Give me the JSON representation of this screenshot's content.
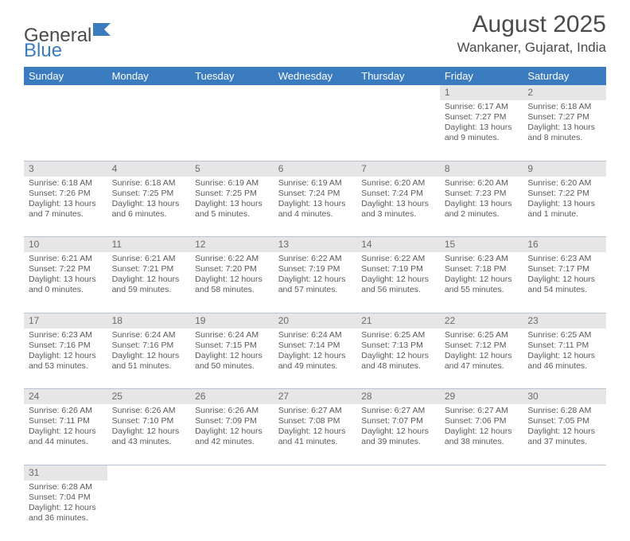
{
  "logo": {
    "part1": "General",
    "part2": "Blue"
  },
  "title": "August 2025",
  "location": "Wankaner, Gujarat, India",
  "colors": {
    "header_bg": "#3b7bbf",
    "header_text": "#ffffff",
    "daynum_bg": "#e6e6e6",
    "cell_border": "#b8c4d0",
    "body_text": "#5a5a5a",
    "title_text": "#4a4a4a"
  },
  "typography": {
    "title_fontsize": 30,
    "location_fontsize": 17,
    "header_fontsize": 13,
    "cell_fontsize": 10.5
  },
  "weekdays": [
    "Sunday",
    "Monday",
    "Tuesday",
    "Wednesday",
    "Thursday",
    "Friday",
    "Saturday"
  ],
  "weeks": [
    [
      null,
      null,
      null,
      null,
      null,
      {
        "n": "1",
        "sr": "Sunrise: 6:17 AM",
        "ss": "Sunset: 7:27 PM",
        "dl": "Daylight: 13 hours and 9 minutes."
      },
      {
        "n": "2",
        "sr": "Sunrise: 6:18 AM",
        "ss": "Sunset: 7:27 PM",
        "dl": "Daylight: 13 hours and 8 minutes."
      }
    ],
    [
      {
        "n": "3",
        "sr": "Sunrise: 6:18 AM",
        "ss": "Sunset: 7:26 PM",
        "dl": "Daylight: 13 hours and 7 minutes."
      },
      {
        "n": "4",
        "sr": "Sunrise: 6:18 AM",
        "ss": "Sunset: 7:25 PM",
        "dl": "Daylight: 13 hours and 6 minutes."
      },
      {
        "n": "5",
        "sr": "Sunrise: 6:19 AM",
        "ss": "Sunset: 7:25 PM",
        "dl": "Daylight: 13 hours and 5 minutes."
      },
      {
        "n": "6",
        "sr": "Sunrise: 6:19 AM",
        "ss": "Sunset: 7:24 PM",
        "dl": "Daylight: 13 hours and 4 minutes."
      },
      {
        "n": "7",
        "sr": "Sunrise: 6:20 AM",
        "ss": "Sunset: 7:24 PM",
        "dl": "Daylight: 13 hours and 3 minutes."
      },
      {
        "n": "8",
        "sr": "Sunrise: 6:20 AM",
        "ss": "Sunset: 7:23 PM",
        "dl": "Daylight: 13 hours and 2 minutes."
      },
      {
        "n": "9",
        "sr": "Sunrise: 6:20 AM",
        "ss": "Sunset: 7:22 PM",
        "dl": "Daylight: 13 hours and 1 minute."
      }
    ],
    [
      {
        "n": "10",
        "sr": "Sunrise: 6:21 AM",
        "ss": "Sunset: 7:22 PM",
        "dl": "Daylight: 13 hours and 0 minutes."
      },
      {
        "n": "11",
        "sr": "Sunrise: 6:21 AM",
        "ss": "Sunset: 7:21 PM",
        "dl": "Daylight: 12 hours and 59 minutes."
      },
      {
        "n": "12",
        "sr": "Sunrise: 6:22 AM",
        "ss": "Sunset: 7:20 PM",
        "dl": "Daylight: 12 hours and 58 minutes."
      },
      {
        "n": "13",
        "sr": "Sunrise: 6:22 AM",
        "ss": "Sunset: 7:19 PM",
        "dl": "Daylight: 12 hours and 57 minutes."
      },
      {
        "n": "14",
        "sr": "Sunrise: 6:22 AM",
        "ss": "Sunset: 7:19 PM",
        "dl": "Daylight: 12 hours and 56 minutes."
      },
      {
        "n": "15",
        "sr": "Sunrise: 6:23 AM",
        "ss": "Sunset: 7:18 PM",
        "dl": "Daylight: 12 hours and 55 minutes."
      },
      {
        "n": "16",
        "sr": "Sunrise: 6:23 AM",
        "ss": "Sunset: 7:17 PM",
        "dl": "Daylight: 12 hours and 54 minutes."
      }
    ],
    [
      {
        "n": "17",
        "sr": "Sunrise: 6:23 AM",
        "ss": "Sunset: 7:16 PM",
        "dl": "Daylight: 12 hours and 53 minutes."
      },
      {
        "n": "18",
        "sr": "Sunrise: 6:24 AM",
        "ss": "Sunset: 7:16 PM",
        "dl": "Daylight: 12 hours and 51 minutes."
      },
      {
        "n": "19",
        "sr": "Sunrise: 6:24 AM",
        "ss": "Sunset: 7:15 PM",
        "dl": "Daylight: 12 hours and 50 minutes."
      },
      {
        "n": "20",
        "sr": "Sunrise: 6:24 AM",
        "ss": "Sunset: 7:14 PM",
        "dl": "Daylight: 12 hours and 49 minutes."
      },
      {
        "n": "21",
        "sr": "Sunrise: 6:25 AM",
        "ss": "Sunset: 7:13 PM",
        "dl": "Daylight: 12 hours and 48 minutes."
      },
      {
        "n": "22",
        "sr": "Sunrise: 6:25 AM",
        "ss": "Sunset: 7:12 PM",
        "dl": "Daylight: 12 hours and 47 minutes."
      },
      {
        "n": "23",
        "sr": "Sunrise: 6:25 AM",
        "ss": "Sunset: 7:11 PM",
        "dl": "Daylight: 12 hours and 46 minutes."
      }
    ],
    [
      {
        "n": "24",
        "sr": "Sunrise: 6:26 AM",
        "ss": "Sunset: 7:11 PM",
        "dl": "Daylight: 12 hours and 44 minutes."
      },
      {
        "n": "25",
        "sr": "Sunrise: 6:26 AM",
        "ss": "Sunset: 7:10 PM",
        "dl": "Daylight: 12 hours and 43 minutes."
      },
      {
        "n": "26",
        "sr": "Sunrise: 6:26 AM",
        "ss": "Sunset: 7:09 PM",
        "dl": "Daylight: 12 hours and 42 minutes."
      },
      {
        "n": "27",
        "sr": "Sunrise: 6:27 AM",
        "ss": "Sunset: 7:08 PM",
        "dl": "Daylight: 12 hours and 41 minutes."
      },
      {
        "n": "28",
        "sr": "Sunrise: 6:27 AM",
        "ss": "Sunset: 7:07 PM",
        "dl": "Daylight: 12 hours and 39 minutes."
      },
      {
        "n": "29",
        "sr": "Sunrise: 6:27 AM",
        "ss": "Sunset: 7:06 PM",
        "dl": "Daylight: 12 hours and 38 minutes."
      },
      {
        "n": "30",
        "sr": "Sunrise: 6:28 AM",
        "ss": "Sunset: 7:05 PM",
        "dl": "Daylight: 12 hours and 37 minutes."
      }
    ],
    [
      {
        "n": "31",
        "sr": "Sunrise: 6:28 AM",
        "ss": "Sunset: 7:04 PM",
        "dl": "Daylight: 12 hours and 36 minutes."
      },
      null,
      null,
      null,
      null,
      null,
      null
    ]
  ]
}
